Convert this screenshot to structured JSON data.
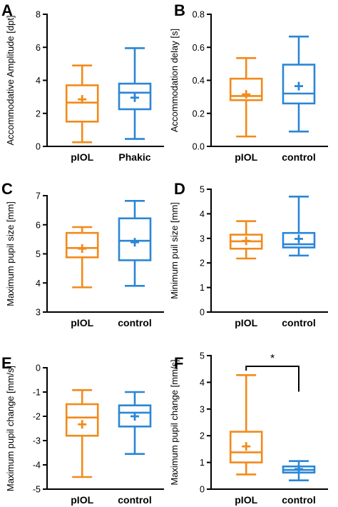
{
  "colors": {
    "orange": "#F28A1A",
    "blue": "#2A86D6",
    "axis": "#000000"
  },
  "chart_data": [
    {
      "panel": "A",
      "type": "box",
      "ylabel": "Accommodative Amplitude [dpt]",
      "ylim": [
        0,
        8
      ],
      "yticks": [
        0,
        2,
        4,
        6,
        8
      ],
      "categories": [
        "pIOL",
        "Phakic"
      ],
      "boxes": [
        {
          "min": 0.25,
          "q1": 1.5,
          "median": 2.65,
          "q3": 3.7,
          "max": 4.9,
          "mean": 2.85
        },
        {
          "min": 0.45,
          "q1": 2.25,
          "median": 3.25,
          "q3": 3.8,
          "max": 5.95,
          "mean": 2.95
        }
      ]
    },
    {
      "panel": "B",
      "type": "box",
      "ylabel": "Accommodation delay [s]",
      "ylim": [
        0,
        0.8
      ],
      "yticks": [
        "0.0",
        "0.2",
        "0.4",
        "0.6",
        "0.8"
      ],
      "categories": [
        "pIOL",
        "control"
      ],
      "boxes": [
        {
          "min": 0.06,
          "q1": 0.28,
          "median": 0.305,
          "q3": 0.41,
          "max": 0.535,
          "mean": 0.315
        },
        {
          "min": 0.09,
          "q1": 0.26,
          "median": 0.32,
          "q3": 0.495,
          "max": 0.665,
          "mean": 0.365
        }
      ]
    },
    {
      "panel": "C",
      "type": "box",
      "ylabel": "Maximum pupil size [mm]",
      "ylim": [
        3,
        7
      ],
      "yticks": [
        3,
        4,
        5,
        6,
        7
      ],
      "categories": [
        "pIOL",
        "control"
      ],
      "boxes": [
        {
          "min": 3.85,
          "q1": 4.88,
          "median": 5.2,
          "q3": 5.72,
          "max": 5.92,
          "mean": 5.18
        },
        {
          "min": 3.9,
          "q1": 4.78,
          "median": 5.45,
          "q3": 6.22,
          "max": 6.82,
          "mean": 5.4
        }
      ]
    },
    {
      "panel": "D",
      "type": "box",
      "ylabel": "Minimum puil size [mm]",
      "ylim": [
        0,
        5
      ],
      "yticks": [
        0,
        1,
        2,
        3,
        4,
        5
      ],
      "categories": [
        "pIOL",
        "control"
      ],
      "boxes": [
        {
          "min": 2.18,
          "q1": 2.58,
          "median": 2.88,
          "q3": 3.15,
          "max": 3.7,
          "mean": 2.9
        },
        {
          "min": 2.3,
          "q1": 2.63,
          "median": 2.76,
          "q3": 3.22,
          "max": 4.7,
          "mean": 2.98
        }
      ]
    },
    {
      "panel": "E",
      "type": "box",
      "ylabel": "Maximum pupil change [mm/s]",
      "ylim": [
        -5,
        0
      ],
      "yticks": [
        -5,
        -4,
        -3,
        -2,
        -1,
        0
      ],
      "categories": [
        "pIOL",
        "control"
      ],
      "boxes": [
        {
          "min": -4.5,
          "q1": -2.8,
          "median": -2.05,
          "q3": -1.5,
          "max": -0.92,
          "mean": -2.33
        },
        {
          "min": -3.55,
          "q1": -2.42,
          "median": -1.85,
          "q3": -1.55,
          "max": -1.0,
          "mean": -2.0
        }
      ]
    },
    {
      "panel": "F",
      "type": "box",
      "ylabel": "Maximum pupil change [mm/s]",
      "ylim": [
        0,
        5
      ],
      "yticks": [
        0,
        1,
        2,
        3,
        4,
        5
      ],
      "categories": [
        "pIOL",
        "control"
      ],
      "boxes": [
        {
          "min": 0.55,
          "q1": 1.0,
          "median": 1.38,
          "q3": 2.15,
          "max": 4.27,
          "mean": 1.6
        },
        {
          "min": 0.33,
          "q1": 0.62,
          "median": 0.72,
          "q3": 0.85,
          "max": 1.05,
          "mean": 0.75
        }
      ],
      "significance": "*"
    }
  ]
}
